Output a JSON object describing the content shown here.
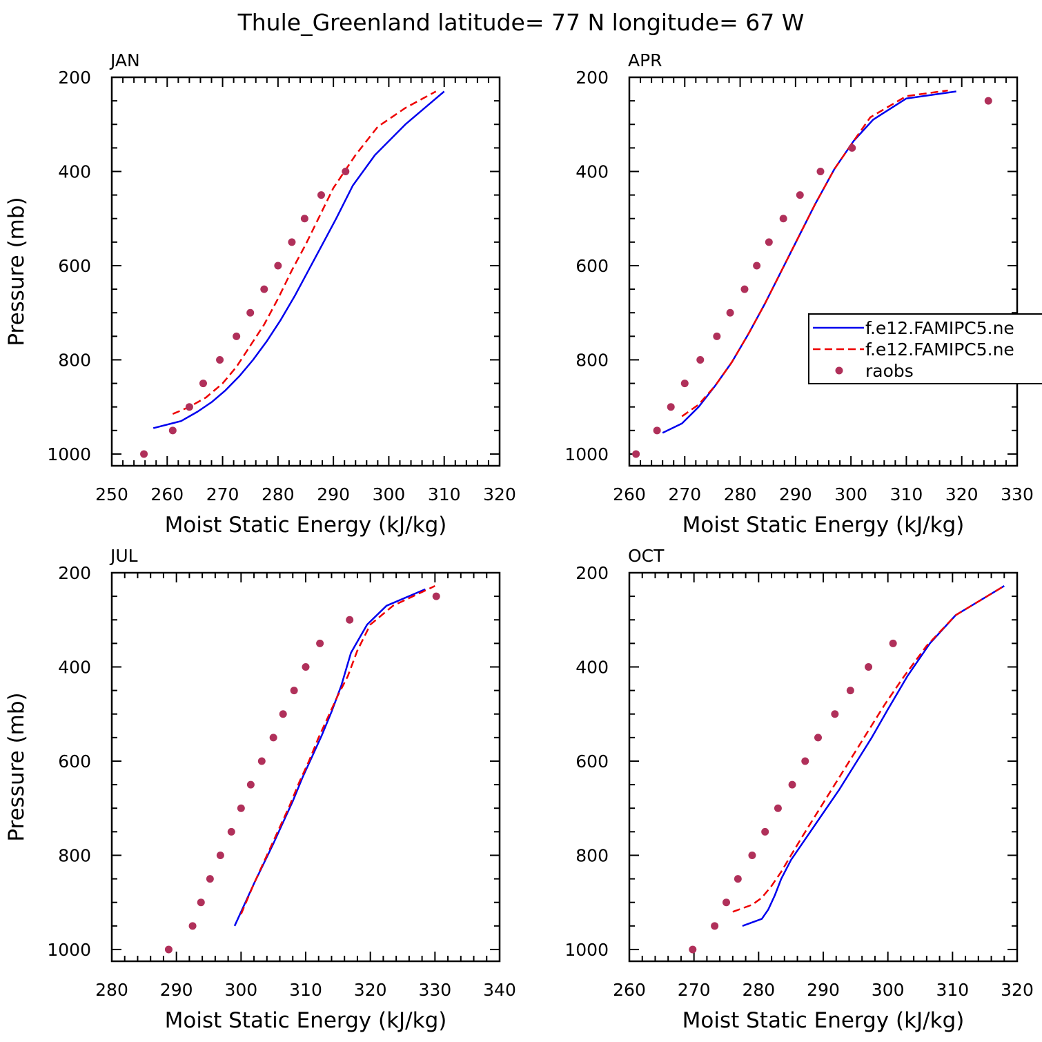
{
  "title": "Thule_Greenland  latitude= 77 N longitude= 67 W",
  "colors": {
    "series_blue": "#0000ee",
    "series_red": "#ee0000",
    "raobs": "#b0305a",
    "axis": "#000000"
  },
  "chart_data": [
    {
      "type": "line",
      "panel": "JAN",
      "title": "JAN",
      "xlabel": "Moist Static Energy (kJ/kg)",
      "ylabel": "Pressure (mb)",
      "xlim": [
        250,
        320
      ],
      "ylim": [
        200,
        1025
      ],
      "y_inverted": true,
      "xticks": [
        250,
        260,
        270,
        280,
        290,
        300,
        310,
        320
      ],
      "yticks": [
        200,
        400,
        600,
        800,
        1000
      ],
      "grid": false,
      "series": [
        {
          "style": "solid",
          "color": "blue",
          "x": [
            257.5,
            262.5,
            265.5,
            268,
            270.5,
            273,
            275.5,
            278,
            280.5,
            283,
            285.5,
            288,
            290.5,
            293.5,
            297.5,
            303,
            310
          ],
          "y": [
            945,
            930,
            910,
            890,
            865,
            835,
            800,
            760,
            715,
            665,
            610,
            555,
            500,
            430,
            365,
            300,
            230
          ]
        },
        {
          "style": "dashed",
          "color": "red",
          "x": [
            261,
            264,
            267,
            270,
            272.5,
            275,
            277.5,
            280,
            282.5,
            285,
            287.5,
            290,
            294,
            298,
            303,
            308.5
          ],
          "y": [
            915,
            900,
            880,
            850,
            815,
            770,
            725,
            670,
            610,
            555,
            495,
            435,
            365,
            305,
            265,
            230
          ]
        },
        {
          "style": "markers",
          "color": "raobs",
          "x": [
            255.8,
            261,
            264,
            266.5,
            269.5,
            272.5,
            275,
            277.5,
            280,
            282.5,
            284.8,
            287.8,
            292.2
          ],
          "y": [
            1000,
            950,
            900,
            850,
            800,
            750,
            700,
            650,
            600,
            550,
            500,
            450,
            400
          ]
        }
      ]
    },
    {
      "type": "line",
      "panel": "APR",
      "title": "APR",
      "xlabel": "Moist Static Energy (kJ/kg)",
      "ylabel": "",
      "xlim": [
        260,
        330
      ],
      "ylim": [
        200,
        1025
      ],
      "y_inverted": true,
      "xticks": [
        260,
        270,
        280,
        290,
        300,
        310,
        320,
        330
      ],
      "yticks": [
        200,
        400,
        600,
        800,
        1000
      ],
      "grid": false,
      "series": [
        {
          "style": "solid",
          "color": "blue",
          "x": [
            266,
            269.5,
            272.5,
            275.5,
            278.5,
            281.5,
            284.5,
            287.5,
            290.5,
            293.5,
            297,
            300.5,
            304,
            310,
            319
          ],
          "y": [
            955,
            935,
            900,
            855,
            805,
            745,
            680,
            610,
            540,
            470,
            395,
            335,
            290,
            245,
            230
          ]
        },
        {
          "style": "dashed",
          "color": "red",
          "x": [
            269.5,
            272.5,
            275.5,
            278.5,
            281.5,
            284.5,
            287.5,
            290.5,
            293.5,
            297,
            300.5,
            303.5,
            310,
            317.5
          ],
          "y": [
            920,
            895,
            855,
            805,
            745,
            680,
            610,
            540,
            470,
            395,
            335,
            285,
            240,
            228
          ]
        },
        {
          "style": "markers",
          "color": "raobs",
          "x": [
            261.2,
            265,
            267.5,
            270,
            272.8,
            275.8,
            278.2,
            280.8,
            283,
            285.2,
            287.8,
            290.8,
            294.5,
            300.2,
            324.8
          ],
          "y": [
            1000,
            950,
            900,
            850,
            800,
            750,
            700,
            650,
            600,
            550,
            500,
            450,
            400,
            350,
            250
          ]
        }
      ]
    },
    {
      "type": "line",
      "panel": "JUL",
      "title": "JUL",
      "xlabel": "Moist Static Energy (kJ/kg)",
      "ylabel": "Pressure (mb)",
      "xlim": [
        280,
        340
      ],
      "ylim": [
        200,
        1025
      ],
      "y_inverted": true,
      "xticks": [
        280,
        290,
        300,
        310,
        320,
        330,
        340
      ],
      "yticks": [
        200,
        400,
        600,
        800,
        1000
      ],
      "grid": false,
      "series": [
        {
          "style": "solid",
          "color": "blue",
          "x": [
            299,
            302,
            305,
            306.5,
            308,
            309.5,
            311,
            312.5,
            314,
            315.5,
            317,
            319.5,
            322.5,
            328.5
          ],
          "y": [
            950,
            860,
            775,
            730,
            685,
            635,
            590,
            545,
            495,
            440,
            370,
            310,
            270,
            235
          ]
        },
        {
          "style": "dashed",
          "color": "red",
          "x": [
            300,
            302,
            304.5,
            306,
            307.5,
            309,
            310.5,
            312,
            313.5,
            315,
            316.5,
            318,
            320,
            323.5,
            330
          ],
          "y": [
            925,
            860,
            785,
            740,
            695,
            645,
            600,
            550,
            505,
            460,
            420,
            365,
            310,
            270,
            228
          ]
        },
        {
          "style": "markers",
          "color": "raobs",
          "x": [
            288.8,
            292.5,
            293.8,
            295.2,
            296.8,
            298.5,
            300,
            301.5,
            303.2,
            305,
            306.5,
            308.2,
            310,
            312.2,
            316.8,
            330.2
          ],
          "y": [
            1000,
            950,
            900,
            850,
            800,
            750,
            700,
            650,
            600,
            550,
            500,
            450,
            400,
            350,
            300,
            250
          ]
        }
      ]
    },
    {
      "type": "line",
      "panel": "OCT",
      "title": "OCT",
      "xlabel": "Moist Static Energy (kJ/kg)",
      "ylabel": "",
      "xlim": [
        260,
        320
      ],
      "ylim": [
        200,
        1025
      ],
      "y_inverted": true,
      "xticks": [
        260,
        270,
        280,
        290,
        300,
        310,
        320
      ],
      "yticks": [
        200,
        400,
        600,
        800,
        1000
      ],
      "grid": false,
      "series": [
        {
          "style": "solid",
          "color": "blue",
          "x": [
            277.5,
            280.5,
            281.5,
            282.5,
            283.5,
            285,
            287.5,
            290,
            292.5,
            295,
            297.5,
            300,
            303,
            306.5,
            310.5,
            318
          ],
          "y": [
            950,
            935,
            915,
            885,
            850,
            810,
            760,
            710,
            660,
            605,
            550,
            490,
            420,
            350,
            290,
            228
          ]
        },
        {
          "style": "dashed",
          "color": "red",
          "x": [
            276,
            279,
            280.5,
            282,
            283.5,
            285,
            287,
            289.5,
            292,
            294.5,
            297,
            299.5,
            302.5,
            306,
            310.5,
            318
          ],
          "y": [
            920,
            905,
            890,
            865,
            835,
            800,
            755,
            700,
            645,
            590,
            535,
            480,
            420,
            355,
            290,
            228
          ]
        },
        {
          "style": "markers",
          "color": "raobs",
          "x": [
            269.8,
            273.2,
            275,
            276.8,
            279,
            281,
            283,
            285.2,
            287.2,
            289.2,
            291.8,
            294.2,
            297,
            300.8
          ],
          "y": [
            1000,
            950,
            900,
            850,
            800,
            750,
            700,
            650,
            600,
            550,
            500,
            450,
            400,
            350
          ]
        }
      ]
    }
  ],
  "legend": {
    "panel": "APR",
    "entries": [
      {
        "label": "f.e12.FAMIPC5.ne",
        "style": "solid",
        "color": "blue"
      },
      {
        "label": "f.e12.FAMIPC5.ne",
        "style": "dashed",
        "color": "red"
      },
      {
        "label": "raobs",
        "style": "markers",
        "color": "raobs"
      }
    ]
  }
}
